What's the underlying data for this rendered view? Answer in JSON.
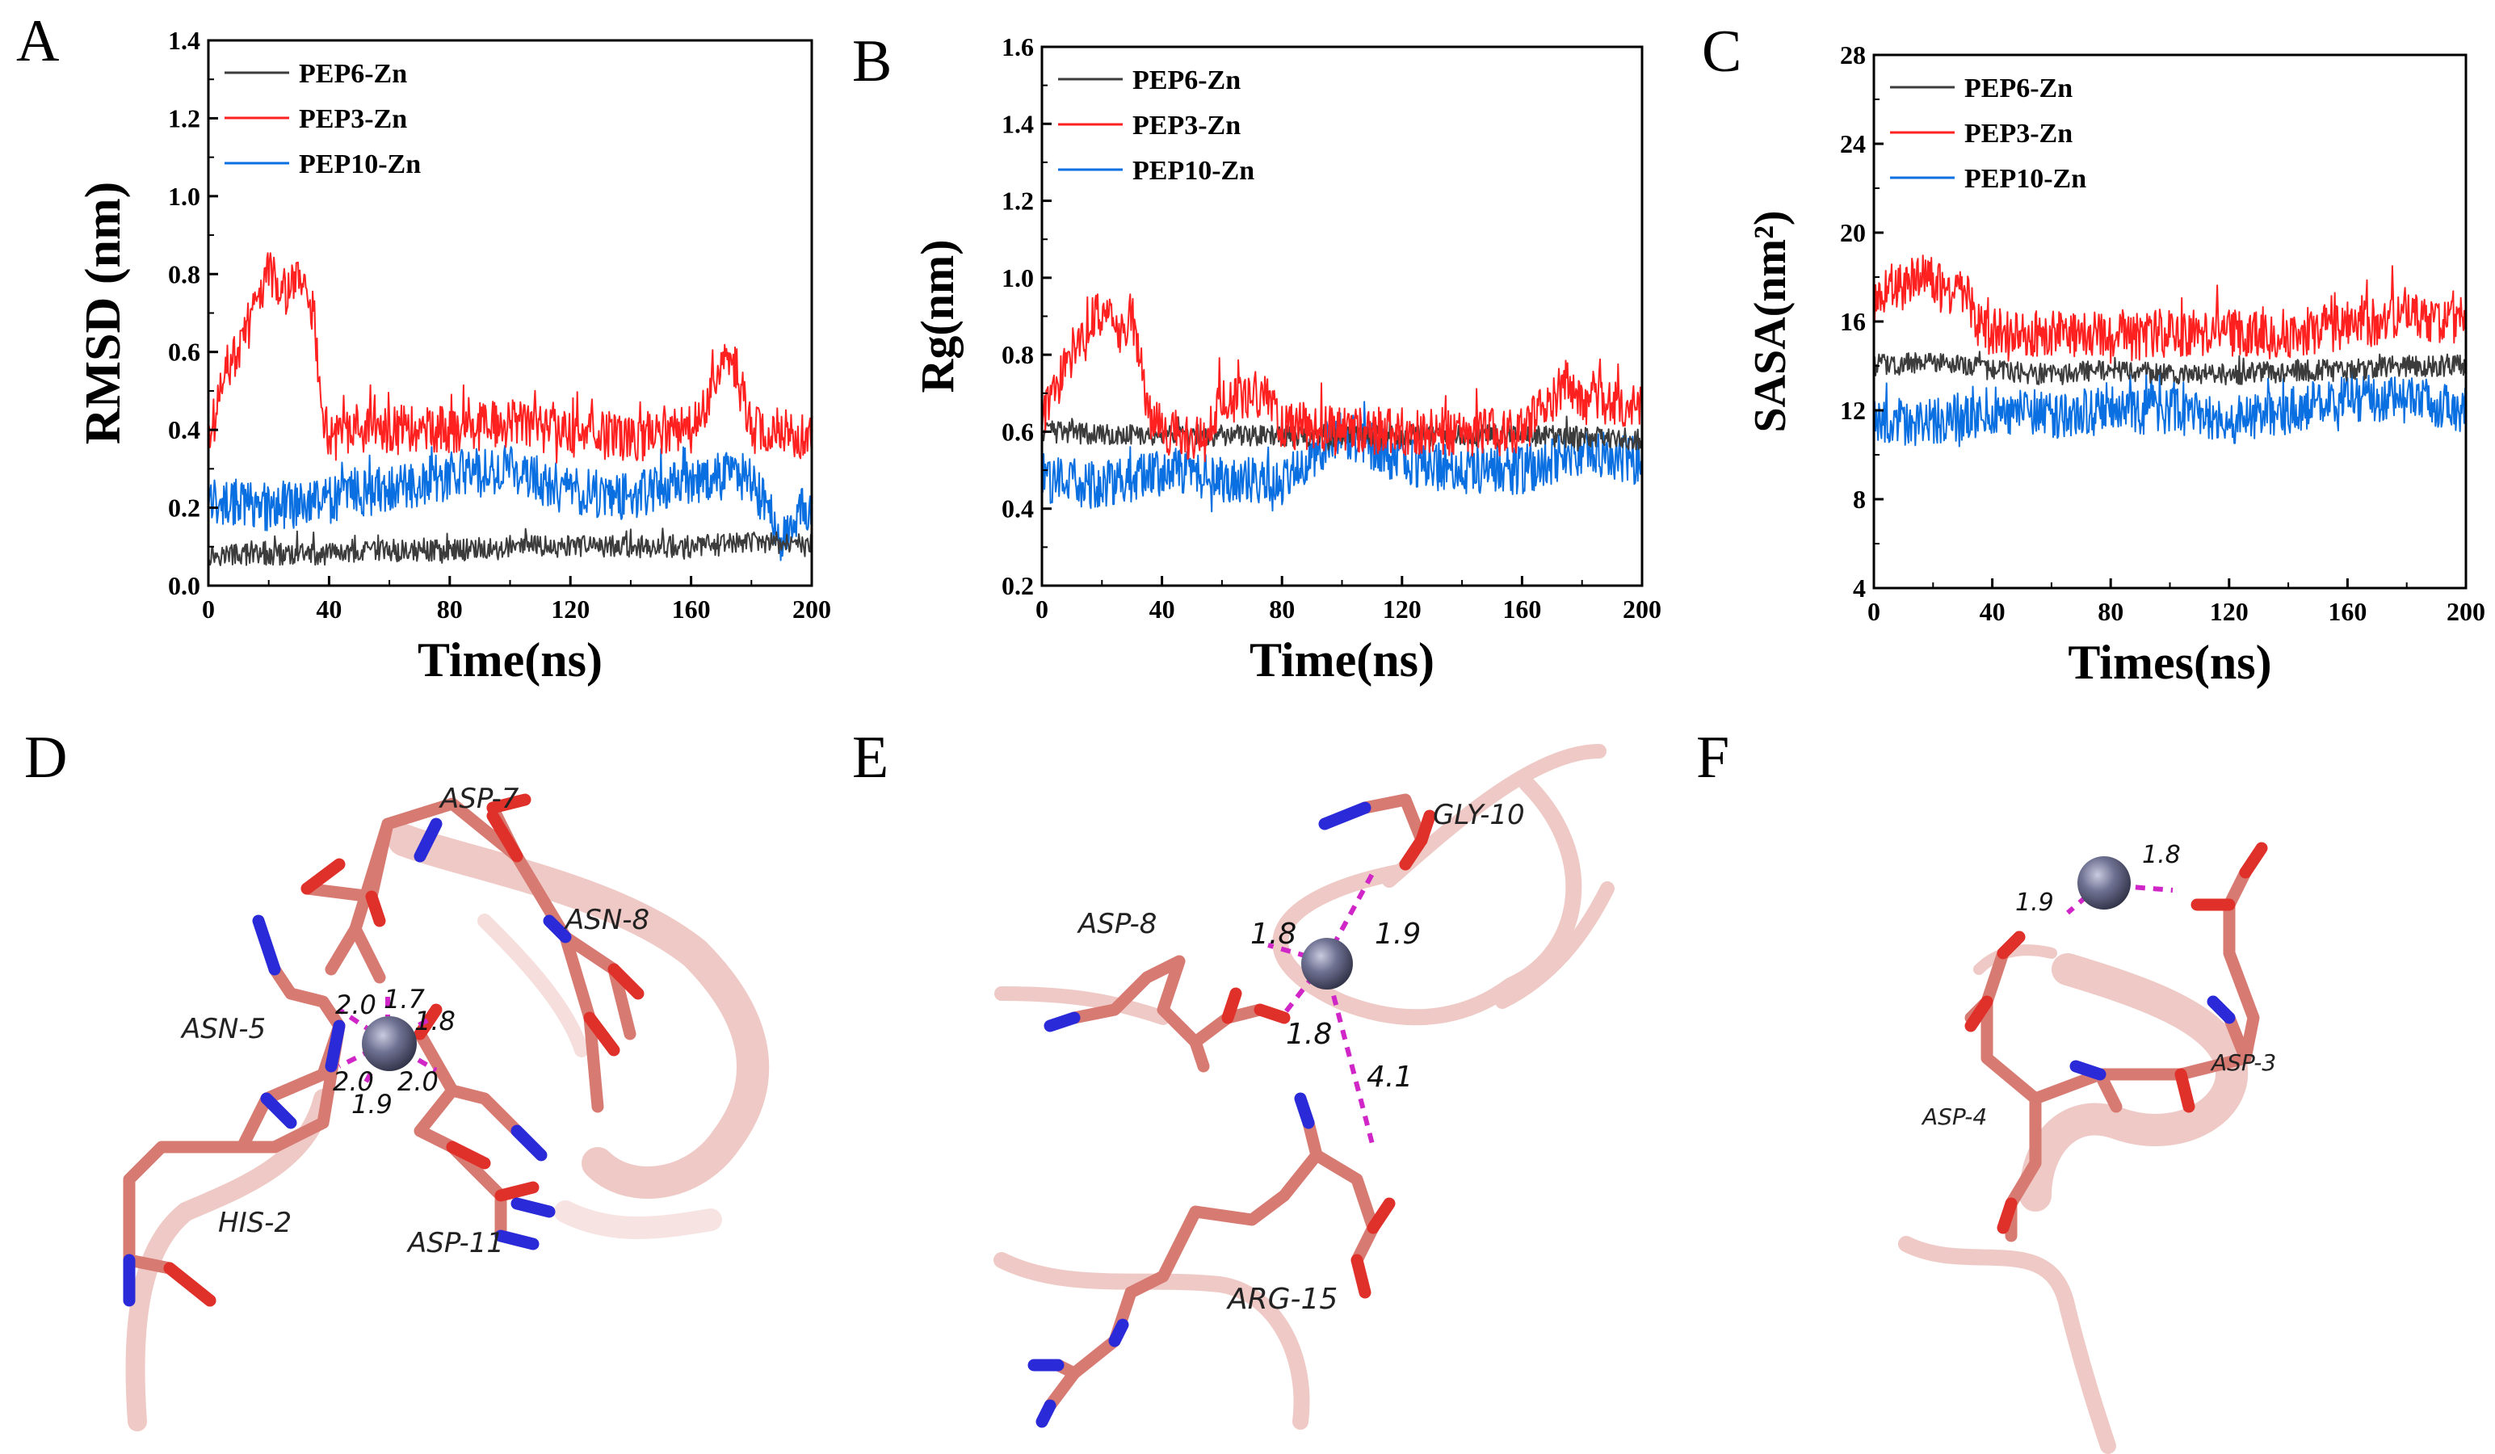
{
  "charts": {
    "A": {
      "panel_letter": "A",
      "xlabel": "Time(ns)",
      "ylabel": "RMSD (nm)",
      "xticks": [
        "0",
        "40",
        "80",
        "120",
        "160",
        "200"
      ],
      "yticks": [
        "0.0",
        "0.2",
        "0.4",
        "0.6",
        "0.8",
        "1.0",
        "1.2",
        "1.4"
      ],
      "legend": [
        "PEP6-Zn",
        "PEP3-Zn",
        "PEP10-Zn"
      ]
    },
    "B": {
      "panel_letter": "B",
      "xlabel": "Time(ns)",
      "ylabel": "Rg(nm)",
      "xticks": [
        "0",
        "40",
        "80",
        "120",
        "160",
        "200"
      ],
      "yticks": [
        "0.2",
        "0.4",
        "0.6",
        "0.8",
        "1.0",
        "1.2",
        "1.4",
        "1.6"
      ],
      "legend": [
        "PEP6-Zn",
        "PEP3-Zn",
        "PEP10-Zn"
      ]
    },
    "C": {
      "panel_letter": "C",
      "xlabel": "Times(ns)",
      "ylabel": "SASA(nm²)",
      "xticks": [
        "0",
        "40",
        "80",
        "120",
        "160",
        "200"
      ],
      "yticks": [
        "4",
        "8",
        "12",
        "16",
        "20",
        "24",
        "28"
      ],
      "legend": [
        "PEP6-Zn",
        "PEP3-Zn",
        "PEP10-Zn"
      ]
    }
  },
  "chart_data": [
    {
      "type": "line",
      "title": "",
      "xlabel": "Time(ns)",
      "ylabel": "RMSD (nm)",
      "xlim": [
        0,
        200
      ],
      "ylim": [
        0.0,
        1.4
      ],
      "grid": false,
      "legend_position": "top-left",
      "series": [
        {
          "name": "PEP6-Zn",
          "color": "#3c3c3c",
          "x": [
            0,
            20,
            40,
            60,
            80,
            100,
            120,
            140,
            160,
            180,
            200
          ],
          "y": [
            0.08,
            0.08,
            0.08,
            0.09,
            0.09,
            0.1,
            0.1,
            0.1,
            0.1,
            0.11,
            0.11
          ]
        },
        {
          "name": "PEP3-Zn",
          "color": "#ff2020",
          "x": [
            0,
            5,
            10,
            15,
            20,
            25,
            30,
            35,
            38,
            40,
            60,
            80,
            100,
            120,
            140,
            160,
            165,
            170,
            175,
            180,
            190,
            200
          ],
          "y": [
            0.35,
            0.55,
            0.6,
            0.7,
            0.8,
            0.75,
            0.8,
            0.7,
            0.42,
            0.38,
            0.4,
            0.4,
            0.42,
            0.39,
            0.38,
            0.4,
            0.45,
            0.58,
            0.55,
            0.4,
            0.4,
            0.38
          ]
        },
        {
          "name": "PEP10-Zn",
          "color": "#0a6fe0",
          "x": [
            0,
            20,
            40,
            60,
            80,
            100,
            120,
            140,
            160,
            180,
            190,
            200
          ],
          "y": [
            0.22,
            0.2,
            0.22,
            0.25,
            0.28,
            0.3,
            0.24,
            0.23,
            0.27,
            0.28,
            0.12,
            0.22
          ]
        }
      ]
    },
    {
      "type": "line",
      "title": "",
      "xlabel": "Time(ns)",
      "ylabel": "Rg(nm)",
      "xlim": [
        0,
        200
      ],
      "ylim": [
        0.2,
        1.6
      ],
      "grid": false,
      "legend_position": "top-left",
      "series": [
        {
          "name": "PEP6-Zn",
          "color": "#3c3c3c",
          "x": [
            0,
            40,
            80,
            120,
            160,
            200
          ],
          "y": [
            0.6,
            0.59,
            0.59,
            0.59,
            0.59,
            0.58
          ]
        },
        {
          "name": "PEP3-Zn",
          "color": "#ff2020",
          "x": [
            0,
            5,
            10,
            15,
            20,
            25,
            30,
            35,
            40,
            55,
            60,
            75,
            80,
            100,
            120,
            160,
            170,
            175,
            180,
            190,
            200
          ],
          "y": [
            0.62,
            0.72,
            0.8,
            0.85,
            0.92,
            0.85,
            0.9,
            0.68,
            0.6,
            0.58,
            0.68,
            0.7,
            0.62,
            0.6,
            0.6,
            0.6,
            0.68,
            0.74,
            0.68,
            0.68,
            0.66
          ]
        },
        {
          "name": "PEP10-Zn",
          "color": "#0a6fe0",
          "x": [
            0,
            20,
            40,
            60,
            80,
            100,
            120,
            140,
            160,
            180,
            200
          ],
          "y": [
            0.48,
            0.46,
            0.5,
            0.48,
            0.47,
            0.6,
            0.52,
            0.5,
            0.5,
            0.55,
            0.52
          ]
        }
      ]
    },
    {
      "type": "line",
      "title": "",
      "xlabel": "Times(ns)",
      "ylabel": "SASA(nm²)",
      "xlim": [
        0,
        200
      ],
      "ylim": [
        4,
        28
      ],
      "grid": false,
      "legend_position": "top-left",
      "series": [
        {
          "name": "PEP6-Zn",
          "color": "#3c3c3c",
          "x": [
            0,
            20,
            40,
            60,
            80,
            100,
            120,
            140,
            160,
            180,
            200
          ],
          "y": [
            14.0,
            14.2,
            13.8,
            13.6,
            13.8,
            13.6,
            13.6,
            13.8,
            13.8,
            14.0,
            14.0
          ]
        },
        {
          "name": "PEP3-Zn",
          "color": "#ff2020",
          "x": [
            0,
            5,
            10,
            15,
            20,
            25,
            30,
            35,
            40,
            60,
            80,
            100,
            120,
            140,
            160,
            170,
            180,
            190,
            200
          ],
          "y": [
            16.5,
            17.5,
            17.5,
            18.0,
            18.0,
            17.0,
            17.5,
            16.0,
            15.5,
            15.5,
            15.2,
            15.5,
            15.5,
            15.3,
            15.8,
            16.0,
            16.5,
            16.0,
            16.2
          ]
        },
        {
          "name": "PEP10-Zn",
          "color": "#0a6fe0",
          "x": [
            0,
            20,
            40,
            60,
            80,
            100,
            120,
            140,
            160,
            180,
            200
          ],
          "y": [
            11.5,
            11.5,
            12.0,
            11.8,
            12.0,
            12.0,
            11.5,
            12.0,
            12.5,
            12.5,
            12.0
          ]
        }
      ]
    }
  ],
  "structures": {
    "D": {
      "panel_letter": "D",
      "residues": [
        "ASP-7",
        "ASN-8",
        "ASN-5",
        "HIS-2",
        "ASP-11"
      ],
      "distances": [
        "2.0",
        "1.7",
        "1.8",
        "2.0",
        "2.0",
        "1.9"
      ]
    },
    "E": {
      "panel_letter": "E",
      "residues": [
        "GLY-10",
        "ASP-8",
        "ARG-15"
      ],
      "distances": [
        "1.8",
        "1.9",
        "1.8",
        "4.1"
      ]
    },
    "F": {
      "panel_letter": "F",
      "residues": [
        "ASP-3",
        "ASP-4"
      ],
      "distances": [
        "1.9",
        "1.8"
      ]
    }
  },
  "colors": {
    "stick": "#d77a72",
    "cartoon": "#e9b7b2",
    "oxygen": "#e0302a",
    "nitrogen": "#2a2ad8",
    "zinc": "#6c6e8a",
    "bond": "#d026c8"
  }
}
